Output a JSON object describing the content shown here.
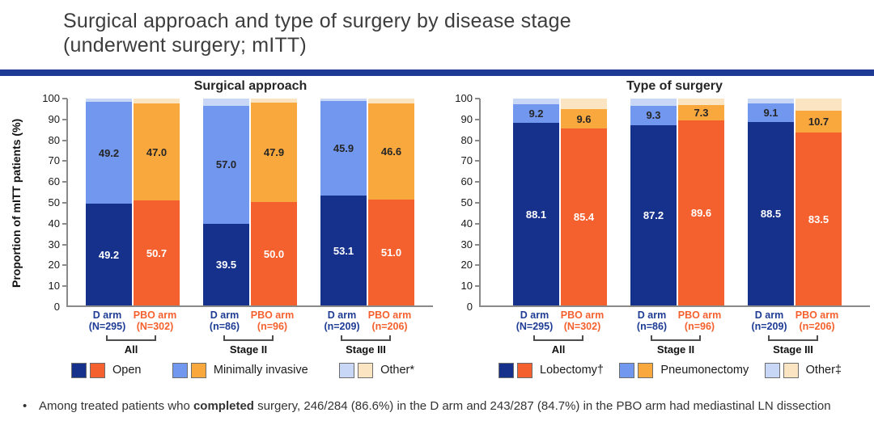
{
  "slide": {
    "title_line1": "Surgical approach and type of surgery by disease stage",
    "title_line2": "(underwent surgery; mITT)",
    "footnote": {
      "bullet": "•",
      "pre": "Among treated patients who ",
      "bold": "completed",
      "post": " surgery, 246/284 (86.6%) in the D arm and 243/287 (84.7%) in the PBO arm had mediastinal LN dissection"
    }
  },
  "colors": {
    "divider": "#1d3a94",
    "d": {
      "primary": "#15318b",
      "secondary": "#7197ee",
      "tertiary": "#c8d7f6",
      "text": "#1f3c94"
    },
    "pbo": {
      "primary": "#f5612e",
      "secondary": "#f9a83e",
      "tertiary": "#fbe4c2",
      "text": "#f5612e"
    },
    "label_on_dark": "#ffffff",
    "label_on_light": "#262626"
  },
  "chart_data": [
    {
      "type": "stacked-bar",
      "title": "Surgical approach",
      "ylabel": "Proportion of mITT patients (%)",
      "ylim": [
        0,
        100
      ],
      "yticks": [
        0,
        10,
        20,
        30,
        40,
        50,
        60,
        70,
        80,
        90,
        100
      ],
      "legend": [
        {
          "label": "Open",
          "tone": "primary"
        },
        {
          "label": "Minimally invasive",
          "tone": "secondary"
        },
        {
          "label": "Other*",
          "tone": "tertiary"
        }
      ],
      "groups": [
        {
          "label": "All",
          "bars": [
            {
              "arm": "D arm",
              "n": "(N=295)",
              "set": "d",
              "segments": [
                {
                  "value": 49.2,
                  "label": "49.2",
                  "tone": "primary"
                },
                {
                  "value": 49.2,
                  "label": "49.2",
                  "tone": "secondary"
                },
                {
                  "value": 1.6,
                  "label": "",
                  "tone": "tertiary"
                }
              ]
            },
            {
              "arm": "PBO arm",
              "n": "(N=302)",
              "set": "pbo",
              "segments": [
                {
                  "value": 50.7,
                  "label": "50.7",
                  "tone": "primary"
                },
                {
                  "value": 47.0,
                  "label": "47.0",
                  "tone": "secondary"
                },
                {
                  "value": 2.3,
                  "label": "",
                  "tone": "tertiary"
                }
              ]
            }
          ]
        },
        {
          "label": "Stage II",
          "bars": [
            {
              "arm": "D arm",
              "n": "(n=86)",
              "set": "d",
              "segments": [
                {
                  "value": 39.5,
                  "label": "39.5",
                  "tone": "primary"
                },
                {
                  "value": 57.0,
                  "label": "57.0",
                  "tone": "secondary"
                },
                {
                  "value": 3.5,
                  "label": "",
                  "tone": "tertiary"
                }
              ]
            },
            {
              "arm": "PBO arm",
              "n": "(n=96)",
              "set": "pbo",
              "segments": [
                {
                  "value": 50.0,
                  "label": "50.0",
                  "tone": "primary"
                },
                {
                  "value": 47.9,
                  "label": "47.9",
                  "tone": "secondary"
                },
                {
                  "value": 2.1,
                  "label": "",
                  "tone": "tertiary"
                }
              ]
            }
          ]
        },
        {
          "label": "Stage III",
          "bars": [
            {
              "arm": "D arm",
              "n": "(n=209)",
              "set": "d",
              "segments": [
                {
                  "value": 53.1,
                  "label": "53.1",
                  "tone": "primary"
                },
                {
                  "value": 45.9,
                  "label": "45.9",
                  "tone": "secondary"
                },
                {
                  "value": 1.0,
                  "label": "",
                  "tone": "tertiary"
                }
              ]
            },
            {
              "arm": "PBO arm",
              "n": "(n=206)",
              "set": "pbo",
              "segments": [
                {
                  "value": 51.0,
                  "label": "51.0",
                  "tone": "primary"
                },
                {
                  "value": 46.6,
                  "label": "46.6",
                  "tone": "secondary"
                },
                {
                  "value": 2.4,
                  "label": "",
                  "tone": "tertiary"
                }
              ]
            }
          ]
        }
      ]
    },
    {
      "type": "stacked-bar",
      "title": "Type of surgery",
      "ylabel": "",
      "ylim": [
        0,
        100
      ],
      "yticks": [
        0,
        10,
        20,
        30,
        40,
        50,
        60,
        70,
        80,
        90,
        100
      ],
      "legend": [
        {
          "label": "Lobectomy†",
          "tone": "primary"
        },
        {
          "label": "Pneumonectomy",
          "tone": "secondary"
        },
        {
          "label": "Other‡",
          "tone": "tertiary"
        }
      ],
      "groups": [
        {
          "label": "All",
          "bars": [
            {
              "arm": "D arm",
              "n": "(N=295)",
              "set": "d",
              "segments": [
                {
                  "value": 88.1,
                  "label": "88.1",
                  "tone": "primary"
                },
                {
                  "value": 9.2,
                  "label": "9.2",
                  "tone": "secondary"
                },
                {
                  "value": 2.7,
                  "label": "",
                  "tone": "tertiary"
                }
              ]
            },
            {
              "arm": "PBO arm",
              "n": "(N=302)",
              "set": "pbo",
              "segments": [
                {
                  "value": 85.4,
                  "label": "85.4",
                  "tone": "primary"
                },
                {
                  "value": 9.6,
                  "label": "9.6",
                  "tone": "secondary"
                },
                {
                  "value": 5.0,
                  "label": "",
                  "tone": "tertiary"
                }
              ]
            }
          ]
        },
        {
          "label": "Stage II",
          "bars": [
            {
              "arm": "D arm",
              "n": "(n=86)",
              "set": "d",
              "segments": [
                {
                  "value": 87.2,
                  "label": "87.2",
                  "tone": "primary"
                },
                {
                  "value": 9.3,
                  "label": "9.3",
                  "tone": "secondary"
                },
                {
                  "value": 3.5,
                  "label": "",
                  "tone": "tertiary"
                }
              ]
            },
            {
              "arm": "PBO arm",
              "n": "(n=96)",
              "set": "pbo",
              "segments": [
                {
                  "value": 89.6,
                  "label": "89.6",
                  "tone": "primary"
                },
                {
                  "value": 7.3,
                  "label": "7.3",
                  "tone": "secondary"
                },
                {
                  "value": 3.1,
                  "label": "",
                  "tone": "tertiary"
                }
              ]
            }
          ]
        },
        {
          "label": "Stage III",
          "bars": [
            {
              "arm": "D arm",
              "n": "(n=209)",
              "set": "d",
              "segments": [
                {
                  "value": 88.5,
                  "label": "88.5",
                  "tone": "primary"
                },
                {
                  "value": 9.1,
                  "label": "9.1",
                  "tone": "secondary"
                },
                {
                  "value": 2.4,
                  "label": "",
                  "tone": "tertiary"
                }
              ]
            },
            {
              "arm": "PBO arm",
              "n": "(n=206)",
              "set": "pbo",
              "segments": [
                {
                  "value": 83.5,
                  "label": "83.5",
                  "tone": "primary"
                },
                {
                  "value": 10.7,
                  "label": "10.7",
                  "tone": "secondary"
                },
                {
                  "value": 5.8,
                  "label": "",
                  "tone": "tertiary"
                }
              ]
            }
          ]
        }
      ]
    }
  ]
}
